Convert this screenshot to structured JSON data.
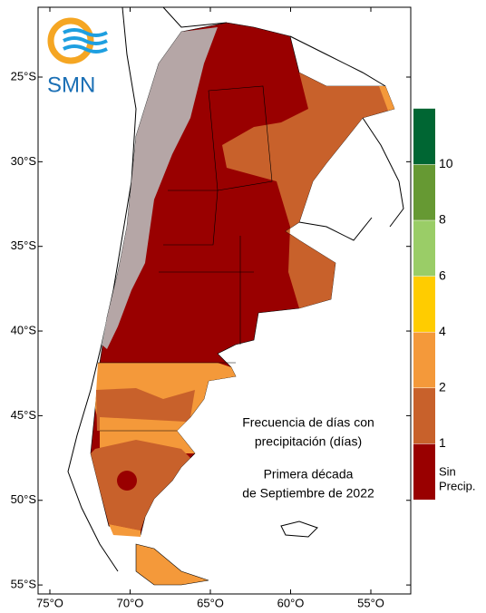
{
  "logo": {
    "text": "SMN"
  },
  "map": {
    "title_lines": [
      "Frecuencia de días con",
      "precipitación (días)"
    ],
    "subtitle_lines": [
      "Primera década",
      "de Septiembre de 2022"
    ],
    "lat_ticks": [
      {
        "value": -25,
        "label": "25°S"
      },
      {
        "value": -30,
        "label": "30°S"
      },
      {
        "value": -35,
        "label": "35°S"
      },
      {
        "value": -40,
        "label": "40°S"
      },
      {
        "value": -45,
        "label": "45°S"
      },
      {
        "value": -50,
        "label": "50°S"
      },
      {
        "value": -55,
        "label": "55°S"
      }
    ],
    "lon_ticks": [
      {
        "value": -75,
        "label": "75°O"
      },
      {
        "value": -70,
        "label": "70°O"
      },
      {
        "value": -65,
        "label": "65°O"
      },
      {
        "value": -60,
        "label": "60°O"
      },
      {
        "value": -55,
        "label": "55°O"
      }
    ],
    "legend": {
      "colors": [
        "#990000",
        "#c8612b",
        "#f4993a",
        "#ffcc00",
        "#9acd67",
        "#669933",
        "#006633"
      ],
      "ticks": [
        1,
        2,
        4,
        6,
        8,
        10
      ],
      "bottom_label_lines": [
        "Sin",
        "Precip."
      ]
    }
  }
}
